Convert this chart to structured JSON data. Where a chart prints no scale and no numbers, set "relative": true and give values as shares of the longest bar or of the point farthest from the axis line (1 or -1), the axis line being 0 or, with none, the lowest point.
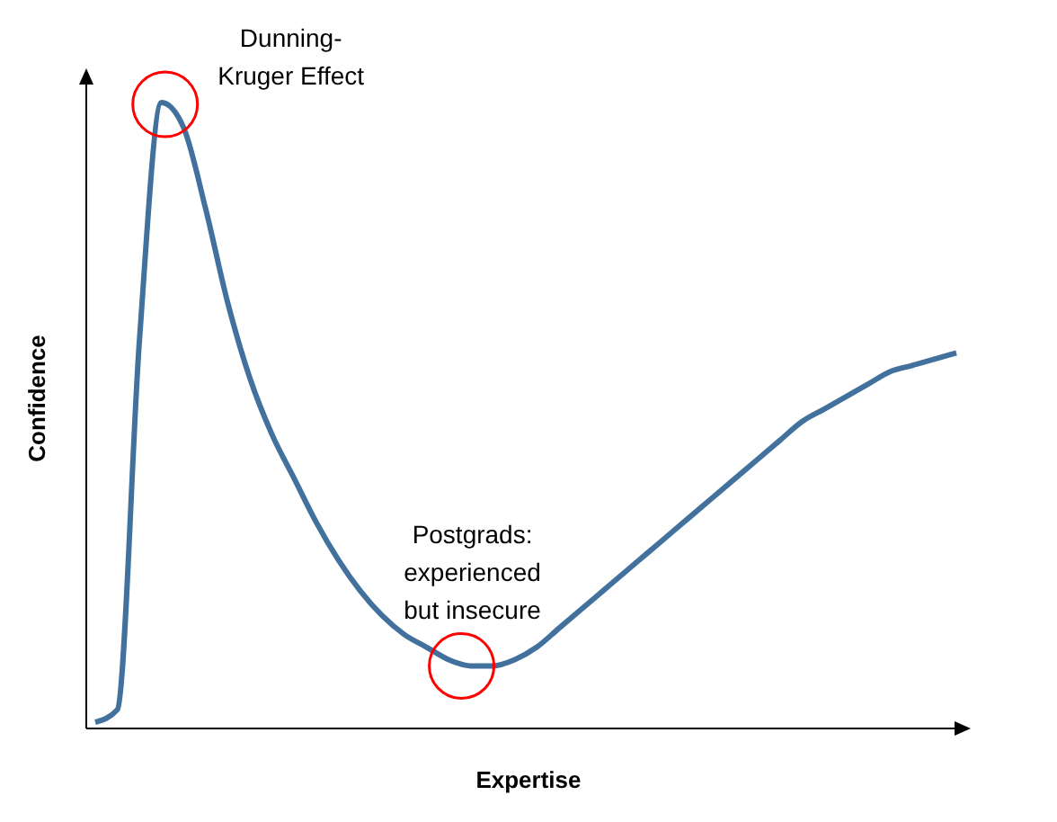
{
  "chart_data": {
    "type": "line",
    "relative": true,
    "xlabel": "Expertise",
    "ylabel": "Confidence",
    "categories": [
      null,
      null,
      null,
      null,
      null,
      null,
      null,
      null,
      null,
      null,
      null,
      null,
      null,
      null,
      null,
      null,
      null,
      null,
      null,
      null,
      null,
      null,
      null,
      null,
      null,
      null,
      null,
      null,
      null,
      null,
      null,
      null,
      null,
      null,
      null,
      null,
      null,
      null,
      null,
      null
    ],
    "series": [
      {
        "color": "#41719c",
        "values": [
          0.01,
          0.03,
          0.62,
          1,
          0.96,
          0.83,
          0.68,
          0.56,
          0.47,
          0.4,
          0.33,
          0.27,
          0.22,
          0.18,
          0.15,
          0.13,
          0.11,
          0.1,
          0.1,
          0.11,
          0.13,
          0.16,
          0.19,
          0.22,
          0.25,
          0.28,
          0.31,
          0.34,
          0.37,
          0.4,
          0.43,
          0.46,
          0.49,
          0.51,
          0.53,
          0.55,
          0.57,
          0.58,
          0.59,
          0.6
        ]
      }
    ],
    "annotations": [
      "Dunning-\nKruger Effect",
      "Postgrads:\nexperienced\nbut insecure"
    ],
    "marker": "none",
    "line_style": "solid"
  }
}
